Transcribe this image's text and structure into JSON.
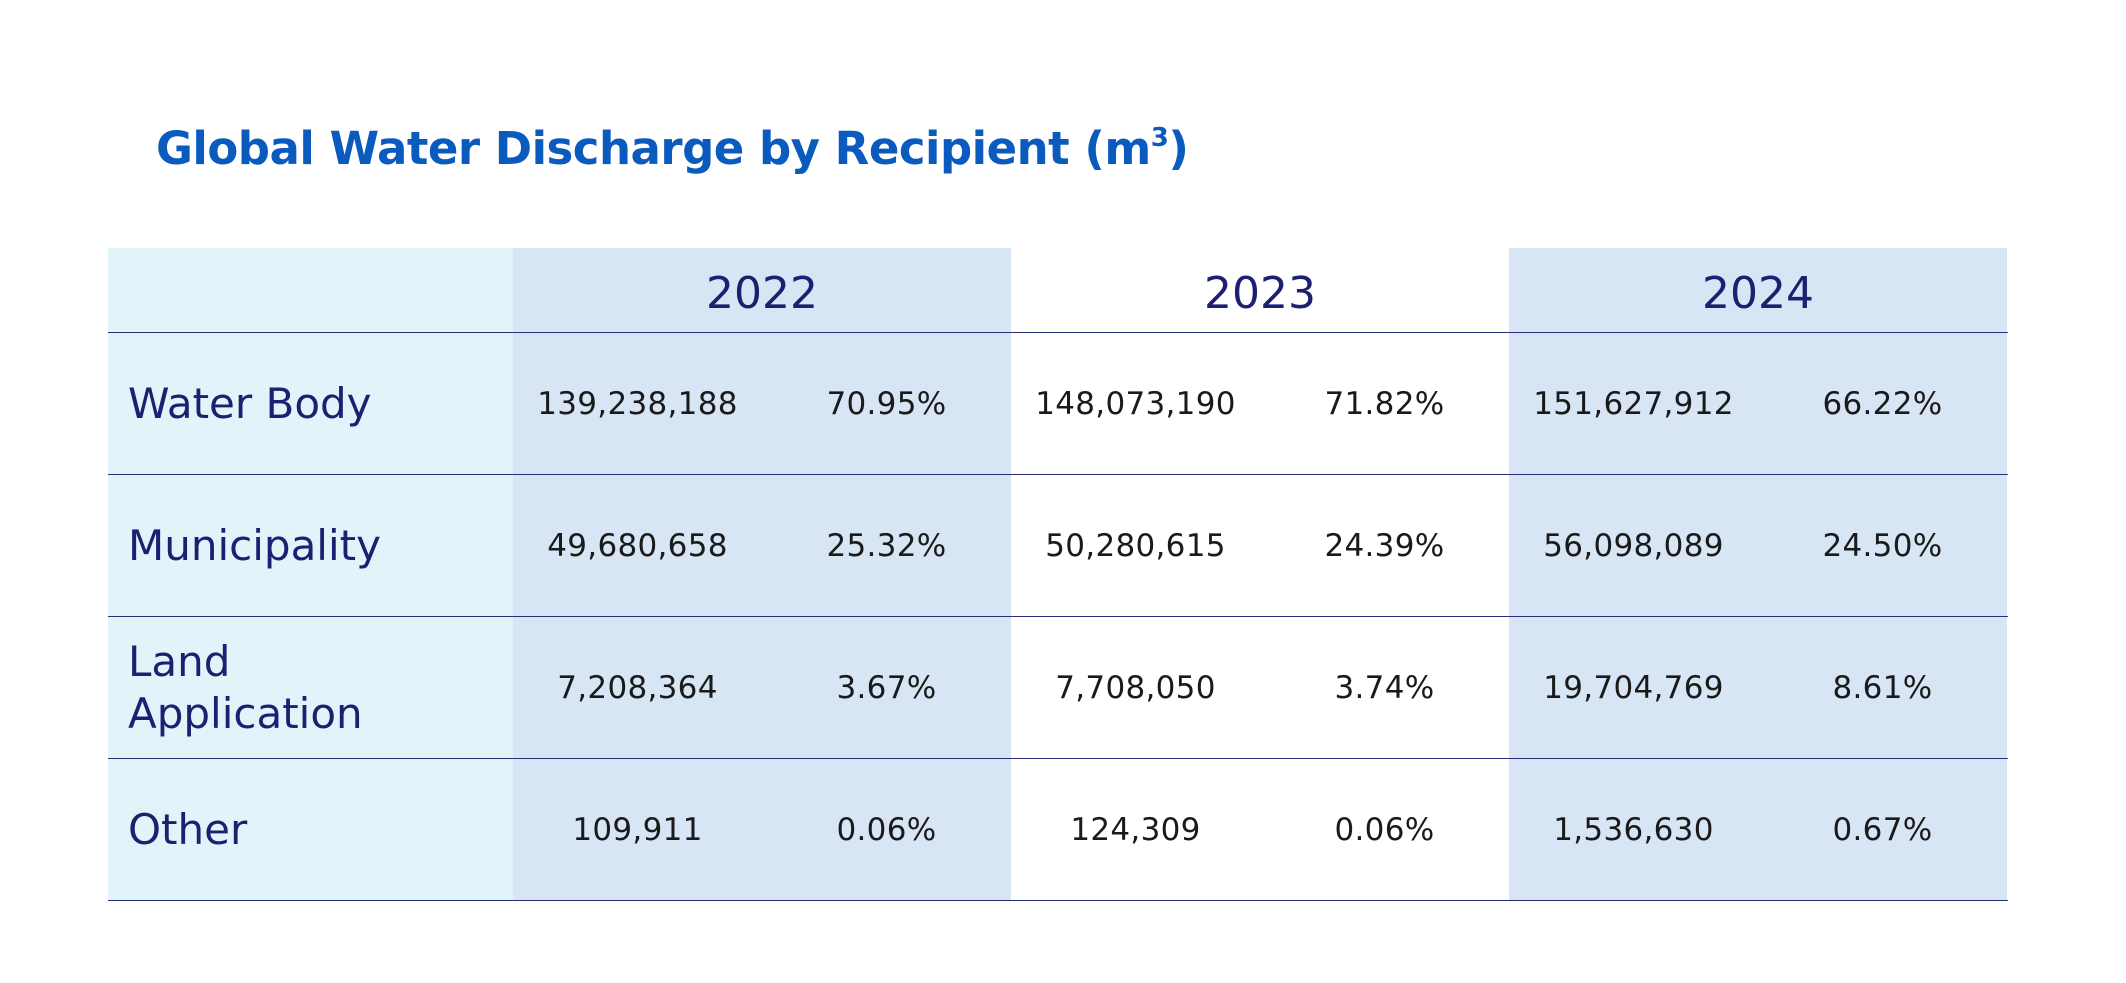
{
  "title": "Global Water Discharge by Recipient (m",
  "title_superscript": "3",
  "title_suffix": ")",
  "years": [
    "2022",
    "2023",
    "2024"
  ],
  "rows": [
    {
      "label": "Water Body",
      "values": [
        {
          "volume": "139,238,188",
          "share": "70.95%"
        },
        {
          "volume": "148,073,190",
          "share": "71.82%"
        },
        {
          "volume": "151,627,912",
          "share": "66.22%"
        }
      ]
    },
    {
      "label": "Municipality",
      "values": [
        {
          "volume": "49,680,658",
          "share": "25.32%"
        },
        {
          "volume": "50,280,615",
          "share": "24.39%"
        },
        {
          "volume": "56,098,089",
          "share": "24.50%"
        }
      ]
    },
    {
      "label": "Land Application",
      "values": [
        {
          "volume": "7,208,364",
          "share": "3.67%"
        },
        {
          "volume": "7,708,050",
          "share": "3.74%"
        },
        {
          "volume": "19,704,769",
          "share": "8.61%"
        }
      ]
    },
    {
      "label": "Other",
      "values": [
        {
          "volume": "109,911",
          "share": "0.06%"
        },
        {
          "volume": "124,309",
          "share": "0.06%"
        },
        {
          "volume": "1,536,630",
          "share": "0.67%"
        }
      ]
    }
  ],
  "colors": {
    "title": "#0a5bbd",
    "label_text": "#1c2070",
    "label_column_bg": "#e1f4fa",
    "shaded_year_bg": "#d8e5f4",
    "rule": "#2a2f7a"
  }
}
